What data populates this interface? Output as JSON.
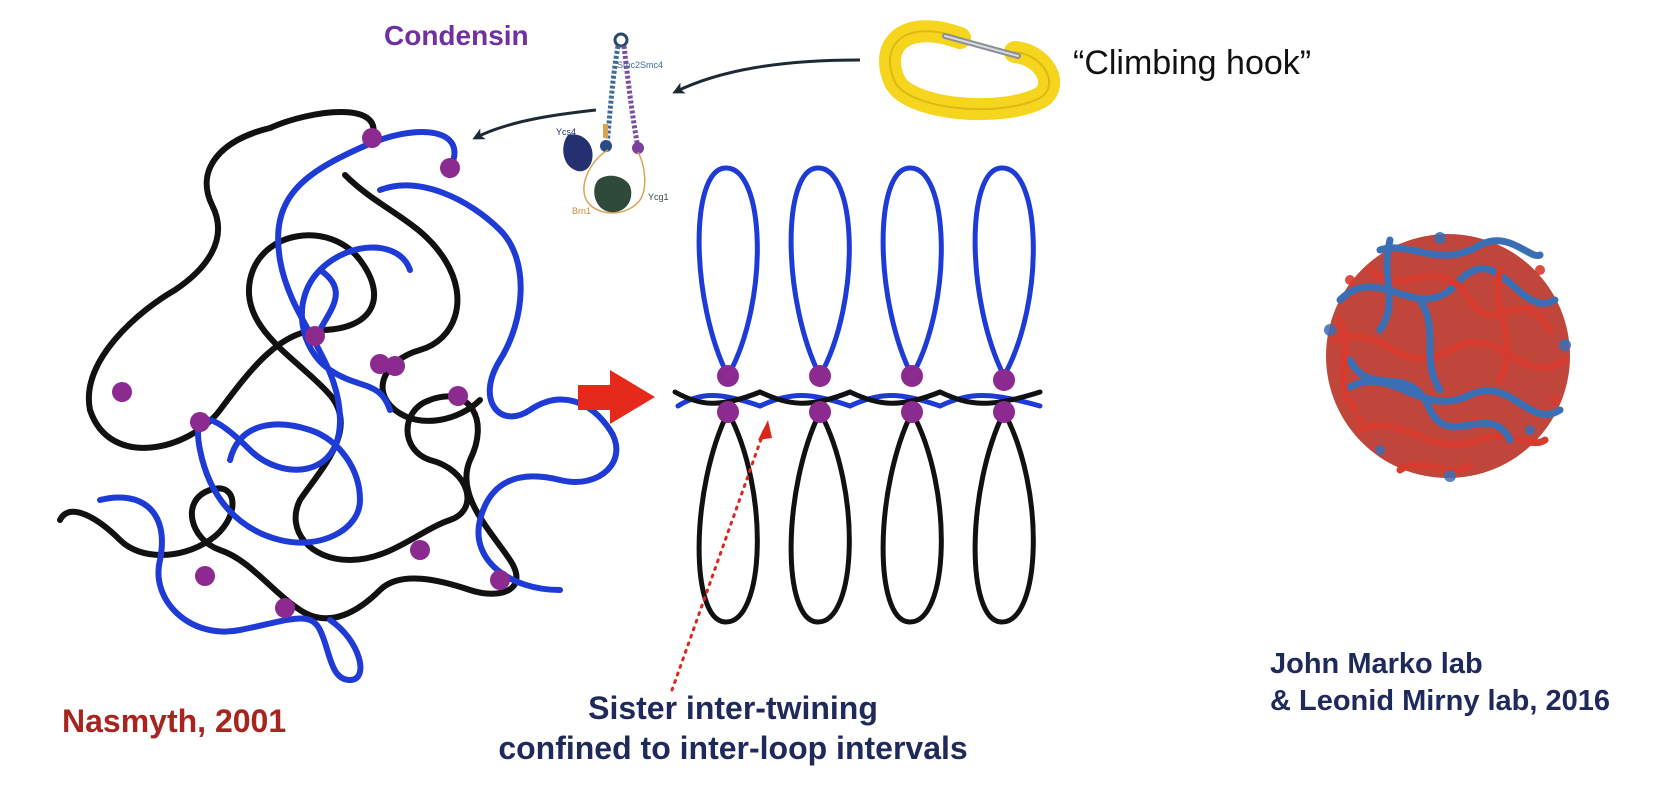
{
  "labels": {
    "condensin": "Condensin",
    "climbing_hook": "“Climbing hook”",
    "citation_left": "Nasmyth, 2001",
    "sister_line1": "Sister inter-twining",
    "sister_line2": "confined to inter-loop intervals",
    "citation_right_line1": "John Marko lab",
    "citation_right_line2": "& Leonid Mirny lab, 2016"
  },
  "protein_subunits": {
    "smc2": "Smc2",
    "smc4": "Smc4",
    "ycs4": "Ycs4",
    "ycg1": "Ycg1",
    "brn1": "Brn1"
  },
  "colors": {
    "condensin_purple": "#7030a0",
    "chromatid_blue": "#1f3bd6",
    "chromatid_black": "#111111",
    "condensin_dot": "#8b2a8f",
    "arrow_red": "#e52a1c",
    "label_navy": "#1f2a5a",
    "citation_red": "#a8241e",
    "hook_yellow": "#f5d51e",
    "globule_red": "#d63b2f",
    "globule_blue": "#3a6fb5"
  },
  "icons": {
    "hook": "carabiner-icon",
    "condensin": "condensin-complex-icon",
    "arrow": "red-arrow-icon"
  }
}
